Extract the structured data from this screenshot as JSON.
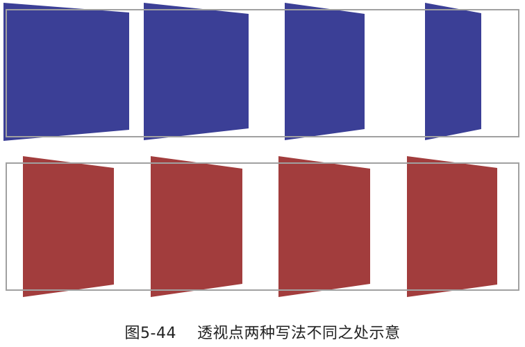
{
  "caption": "图5-44    透视点两种写法不同之处示意",
  "colors": {
    "frame": "#a0a0a0",
    "top_row_fill": "#3b3f96",
    "bottom_row_fill": "#a23d3d"
  },
  "rows": [
    {
      "name": "top-row",
      "fill_key": "top_row_fill",
      "panel_count": 4
    },
    {
      "name": "bottom-row",
      "fill_key": "bottom_row_fill",
      "panel_count": 4
    }
  ]
}
